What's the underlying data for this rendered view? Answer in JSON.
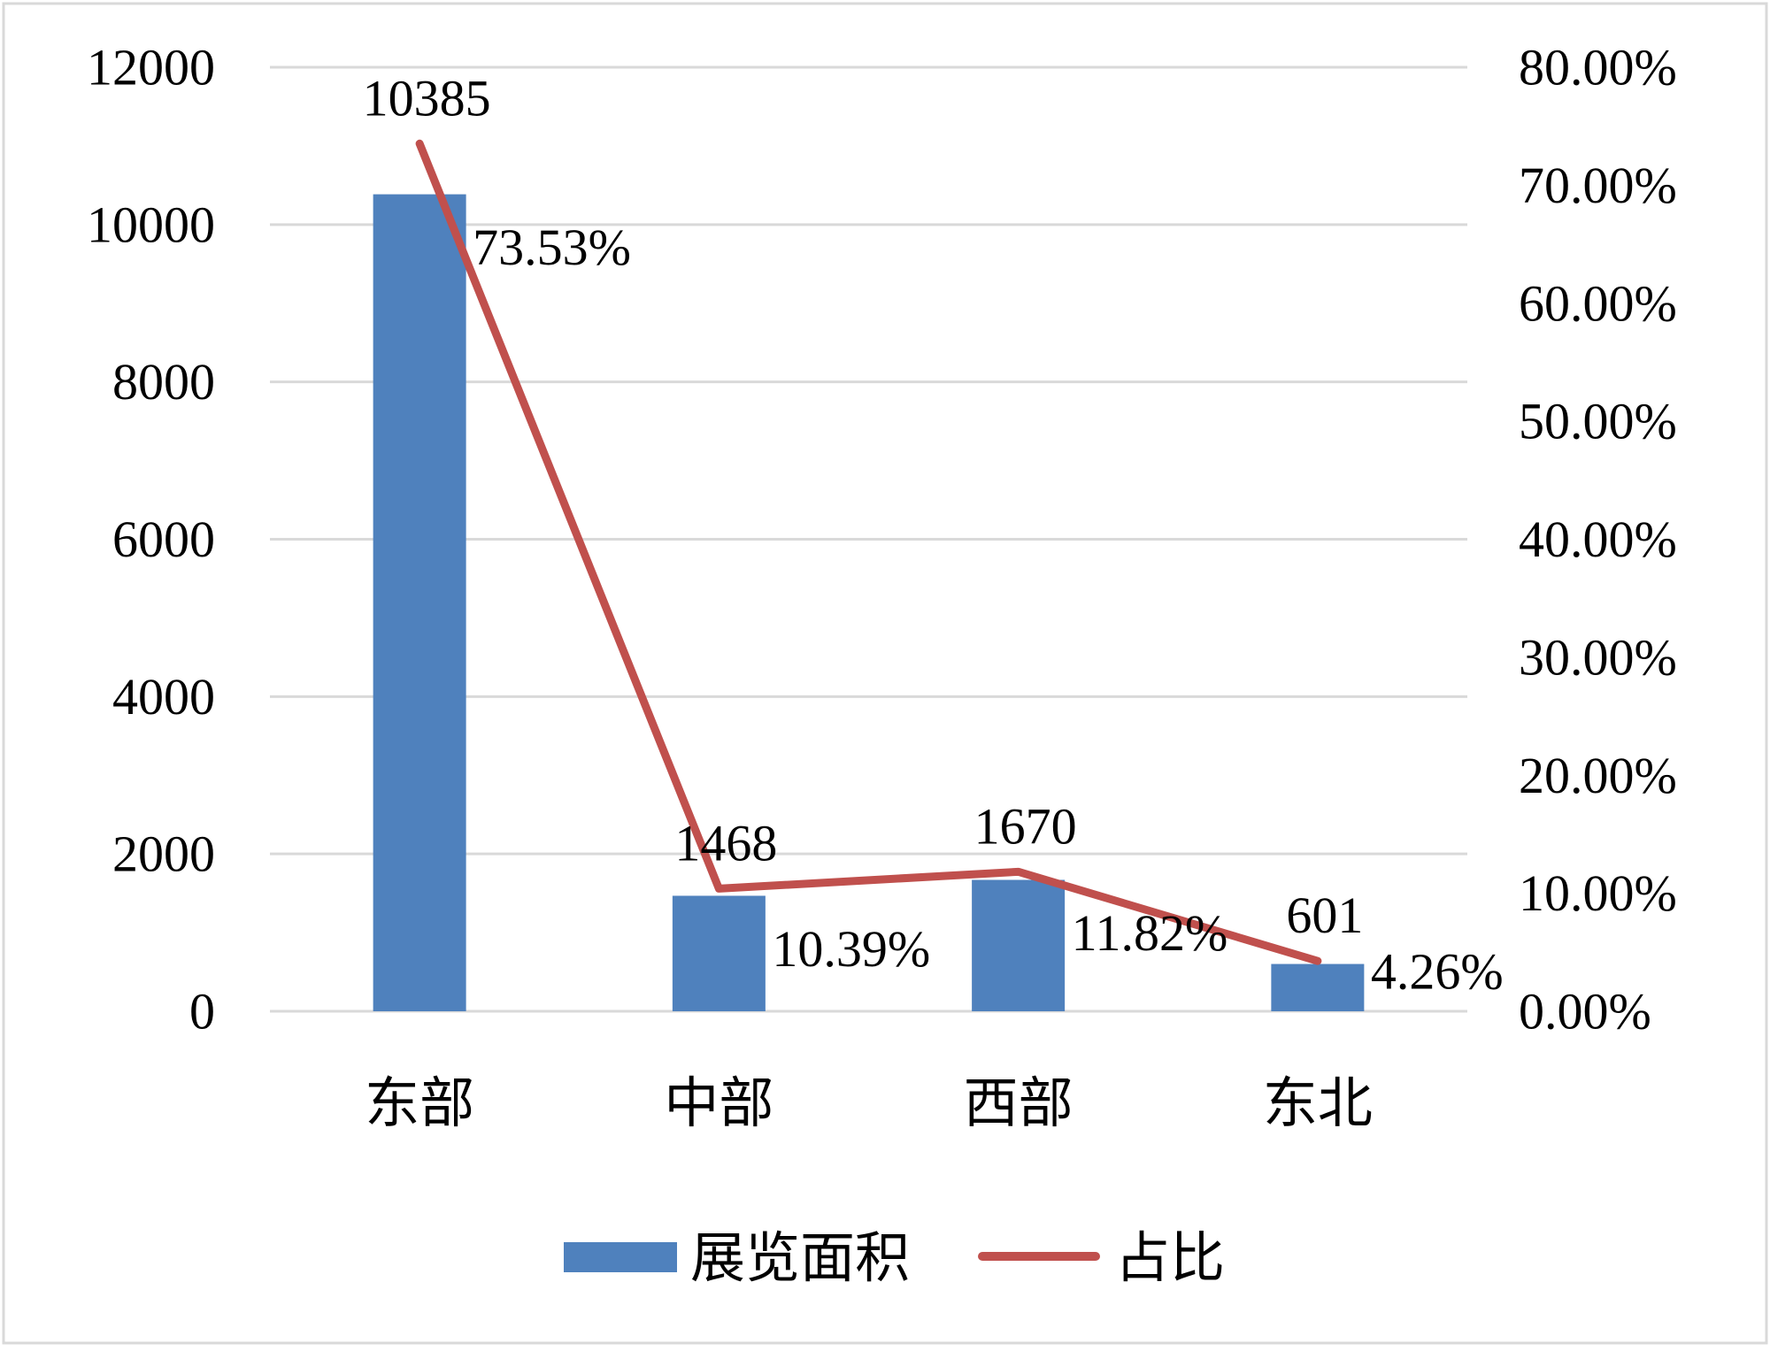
{
  "chart_data": {
    "type": "bar",
    "categories": [
      "东部",
      "中部",
      "西部",
      "东北"
    ],
    "series": [
      {
        "name": "展览面积",
        "kind": "bar",
        "axis": "left",
        "values": [
          10385,
          1468,
          1670,
          601
        ],
        "labels": [
          "10385",
          "1468",
          "1670",
          "601"
        ],
        "color": "#4F81BD"
      },
      {
        "name": "占比",
        "kind": "line",
        "axis": "right",
        "values": [
          73.53,
          10.39,
          11.82,
          4.26
        ],
        "labels": [
          "73.53%",
          "10.39%",
          "11.82%",
          "4.26%"
        ],
        "color": "#C0504D"
      }
    ],
    "y_left": {
      "ylim": [
        0,
        12000
      ],
      "ticks": [
        0,
        2000,
        4000,
        6000,
        8000,
        10000,
        12000
      ],
      "tick_labels": [
        "0",
        "2000",
        "4000",
        "6000",
        "8000",
        "10000",
        "12000"
      ]
    },
    "y_right": {
      "ylim": [
        0,
        80
      ],
      "ticks": [
        0,
        10,
        20,
        30,
        40,
        50,
        60,
        70,
        80
      ],
      "tick_labels": [
        "0.00%",
        "10.00%",
        "20.00%",
        "30.00%",
        "40.00%",
        "50.00%",
        "60.00%",
        "70.00%",
        "80.00%"
      ]
    },
    "grid": true,
    "legend_position": "bottom"
  }
}
